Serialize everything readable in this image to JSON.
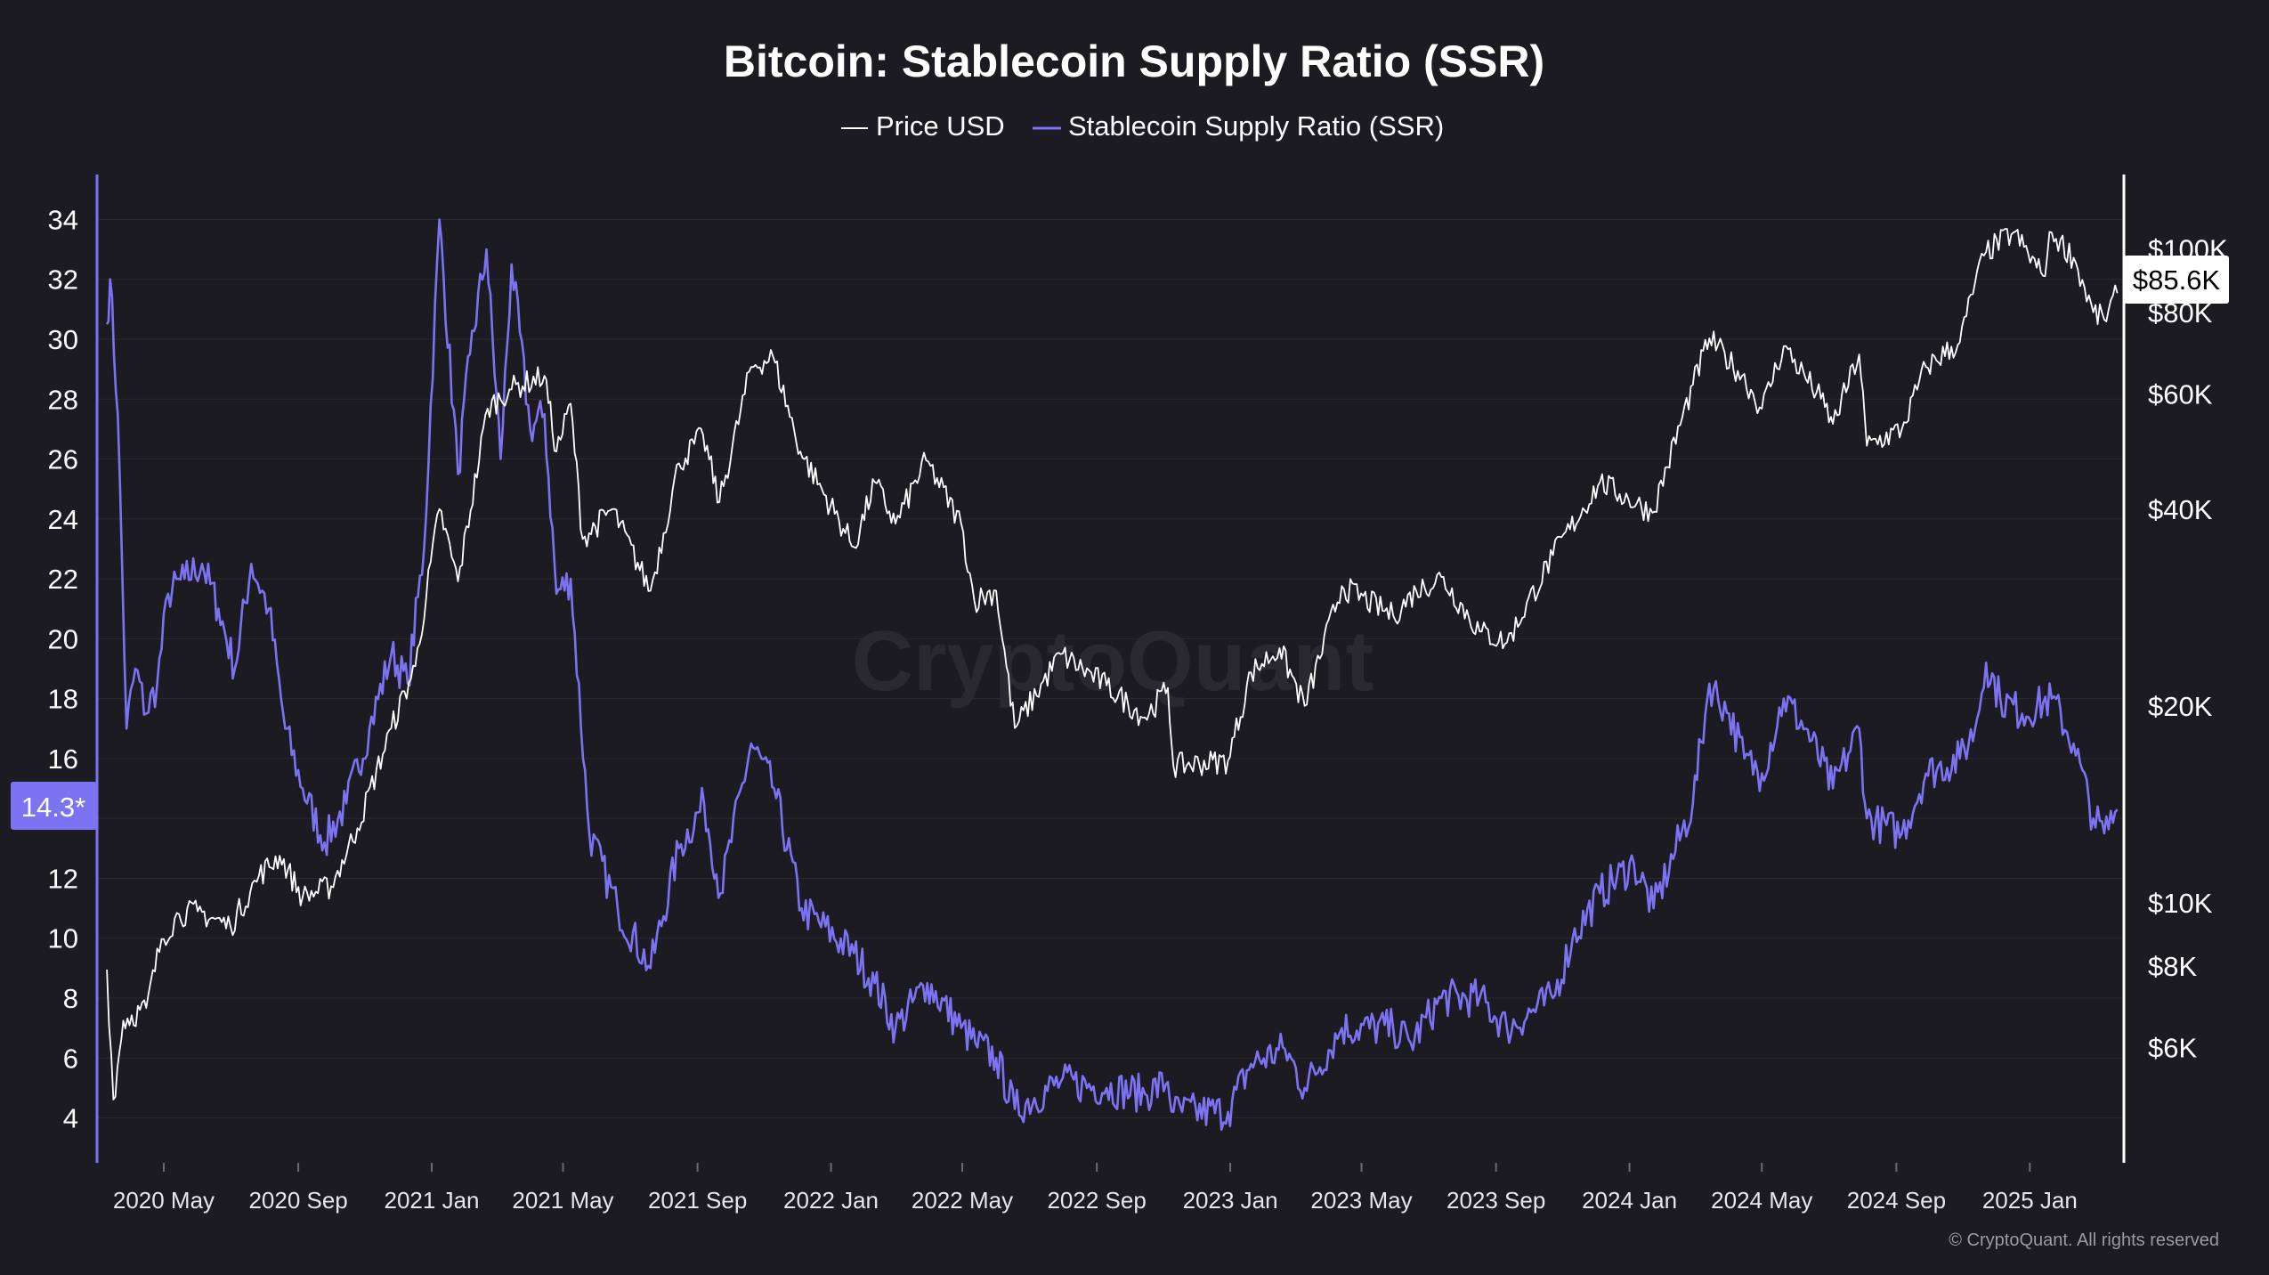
{
  "chart_data": {
    "type": "line",
    "title": "Bitcoin: Stablecoin Supply Ratio (SSR)",
    "legend_placement": "top-center",
    "grid": true,
    "colors": {
      "background": "#1c1b21",
      "price": "#ffffff",
      "ssr": "#7b73f2",
      "grid": "#2b2a31",
      "axis_left": "#7b73f2",
      "axis_right": "#ffffff"
    },
    "x_ticks": [
      "2020 May",
      "2020 Sep",
      "2021 Jan",
      "2021 May",
      "2021 Sep",
      "2022 Jan",
      "2022 May",
      "2022 Sep",
      "2023 Jan",
      "2023 May",
      "2023 Sep",
      "2024 Jan",
      "2024 May",
      "2024 Sep",
      "2025 Jan"
    ],
    "left_ticks": [
      "34",
      "32",
      "30",
      "28",
      "26",
      "24",
      "22",
      "20",
      "18",
      "16",
      "14",
      "12",
      "10",
      "8",
      "6",
      "4"
    ],
    "right_ticks": [
      "$100K",
      "$80K",
      "$60K",
      "$40K",
      "$20K",
      "$10K",
      "$8K",
      "$6K"
    ],
    "right_axis_scale": "log",
    "ylim_left": [
      2.5,
      35.5
    ],
    "ylim_right_usd": [
      4000,
      130000
    ],
    "current_ssr_label": "14.3*",
    "current_price_label": "$85.6K",
    "watermark": "CryptoQuant",
    "copyright": "© CryptoQuant. All rights reserved",
    "series": [
      {
        "name": "Price USD",
        "axis": "right",
        "points": [
          [
            "2020-03-10",
            7900
          ],
          [
            "2020-03-16",
            5000
          ],
          [
            "2020-03-25",
            6600
          ],
          [
            "2020-04-15",
            6900
          ],
          [
            "2020-04-29",
            8800
          ],
          [
            "2020-05-15",
            9600
          ],
          [
            "2020-06-01",
            9700
          ],
          [
            "2020-07-01",
            9200
          ],
          [
            "2020-07-27",
            11000
          ],
          [
            "2020-08-15",
            11800
          ],
          [
            "2020-09-05",
            10200
          ],
          [
            "2020-10-01",
            10600
          ],
          [
            "2020-10-25",
            13000
          ],
          [
            "2020-11-25",
            18500
          ],
          [
            "2020-12-17",
            23000
          ],
          [
            "2021-01-08",
            40000
          ],
          [
            "2021-01-25",
            31000
          ],
          [
            "2021-02-21",
            57000
          ],
          [
            "2021-03-13",
            61000
          ],
          [
            "2021-04-14",
            64000
          ],
          [
            "2021-04-25",
            49000
          ],
          [
            "2021-05-08",
            58000
          ],
          [
            "2021-05-19",
            36000
          ],
          [
            "2021-06-15",
            40000
          ],
          [
            "2021-07-20",
            30000
          ],
          [
            "2021-08-15",
            47000
          ],
          [
            "2021-09-06",
            52000
          ],
          [
            "2021-09-21",
            41000
          ],
          [
            "2021-10-20",
            66000
          ],
          [
            "2021-11-09",
            68500
          ],
          [
            "2021-12-04",
            49000
          ],
          [
            "2022-01-22",
            35000
          ],
          [
            "2022-02-10",
            44000
          ],
          [
            "2022-03-01",
            38000
          ],
          [
            "2022-03-29",
            47500
          ],
          [
            "2022-04-30",
            38000
          ],
          [
            "2022-05-12",
            29000
          ],
          [
            "2022-06-01",
            30000
          ],
          [
            "2022-06-18",
            18500
          ],
          [
            "2022-07-30",
            24000
          ],
          [
            "2022-09-10",
            21500
          ],
          [
            "2022-10-15",
            19200
          ],
          [
            "2022-11-05",
            21300
          ],
          [
            "2022-11-10",
            16200
          ],
          [
            "2022-12-30",
            16500
          ],
          [
            "2023-01-20",
            22500
          ],
          [
            "2023-02-15",
            24500
          ],
          [
            "2023-03-10",
            20000
          ],
          [
            "2023-04-13",
            30500
          ],
          [
            "2023-05-30",
            27500
          ],
          [
            "2023-06-20",
            30000
          ],
          [
            "2023-07-13",
            31500
          ],
          [
            "2023-08-17",
            26000
          ],
          [
            "2023-09-11",
            25000
          ],
          [
            "2023-10-23",
            34000
          ],
          [
            "2023-12-05",
            44000
          ],
          [
            "2024-01-22",
            39500
          ],
          [
            "2024-02-28",
            62000
          ],
          [
            "2024-03-14",
            73000
          ],
          [
            "2024-04-13",
            64000
          ],
          [
            "2024-05-01",
            57000
          ],
          [
            "2024-05-21",
            71000
          ],
          [
            "2024-06-24",
            59000
          ],
          [
            "2024-07-05",
            54000
          ],
          [
            "2024-07-29",
            69000
          ],
          [
            "2024-08-05",
            50000
          ],
          [
            "2024-09-06",
            53000
          ],
          [
            "2024-09-28",
            66000
          ],
          [
            "2024-10-29",
            72000
          ],
          [
            "2024-11-12",
            89000
          ],
          [
            "2024-11-22",
            99000
          ],
          [
            "2024-12-17",
            106000
          ],
          [
            "2025-01-13",
            91000
          ],
          [
            "2025-01-21",
            106000
          ],
          [
            "2025-02-10",
            97000
          ],
          [
            "2025-02-28",
            80000
          ],
          [
            "2025-03-10",
            78000
          ],
          [
            "2025-03-22",
            85600
          ]
        ]
      },
      {
        "name": "Stablecoin Supply Ratio (SSR)",
        "axis": "left",
        "points": [
          [
            "2020-03-10",
            30.5
          ],
          [
            "2020-03-13",
            32.0
          ],
          [
            "2020-03-20",
            27.5
          ],
          [
            "2020-03-28",
            17.0
          ],
          [
            "2020-04-05",
            19.0
          ],
          [
            "2020-04-15",
            17.5
          ],
          [
            "2020-04-25",
            18.5
          ],
          [
            "2020-05-05",
            21.5
          ],
          [
            "2020-05-20",
            22.0
          ],
          [
            "2020-06-05",
            22.5
          ],
          [
            "2020-06-20",
            21.0
          ],
          [
            "2020-07-05",
            19.0
          ],
          [
            "2020-07-20",
            22.5
          ],
          [
            "2020-08-05",
            21.0
          ],
          [
            "2020-08-20",
            17.0
          ],
          [
            "2020-09-05",
            15.0
          ],
          [
            "2020-09-25",
            13.2
          ],
          [
            "2020-10-15",
            14.5
          ],
          [
            "2020-11-05",
            17.0
          ],
          [
            "2020-11-25",
            19.5
          ],
          [
            "2020-12-10",
            18.5
          ],
          [
            "2020-12-25",
            23.0
          ],
          [
            "2021-01-08",
            34.0
          ],
          [
            "2021-01-25",
            25.5
          ],
          [
            "2021-02-05",
            29.5
          ],
          [
            "2021-02-20",
            33.0
          ],
          [
            "2021-03-05",
            26.0
          ],
          [
            "2021-03-15",
            32.5
          ],
          [
            "2021-04-01",
            27.0
          ],
          [
            "2021-04-14",
            27.5
          ],
          [
            "2021-04-25",
            21.5
          ],
          [
            "2021-05-08",
            22.0
          ],
          [
            "2021-05-25",
            13.5
          ],
          [
            "2021-06-20",
            11.0
          ],
          [
            "2021-07-20",
            9.0
          ],
          [
            "2021-08-15",
            13.0
          ],
          [
            "2021-09-07",
            14.5
          ],
          [
            "2021-09-22",
            11.5
          ],
          [
            "2021-10-20",
            16.5
          ],
          [
            "2021-11-10",
            15.0
          ],
          [
            "2021-12-05",
            11.0
          ],
          [
            "2022-01-22",
            9.5
          ],
          [
            "2022-02-10",
            8.5
          ],
          [
            "2022-03-01",
            7.0
          ],
          [
            "2022-03-30",
            8.5
          ],
          [
            "2022-04-30",
            7.0
          ],
          [
            "2022-05-13",
            6.5
          ],
          [
            "2022-06-01",
            6.0
          ],
          [
            "2022-06-18",
            4.3
          ],
          [
            "2022-07-30",
            5.2
          ],
          [
            "2022-09-10",
            5.0
          ],
          [
            "2022-10-15",
            4.8
          ],
          [
            "2022-11-05",
            5.2
          ],
          [
            "2022-11-10",
            4.2
          ],
          [
            "2022-12-30",
            4.2
          ],
          [
            "2023-01-20",
            5.8
          ],
          [
            "2023-02-20",
            6.3
          ],
          [
            "2023-03-10",
            5.0
          ],
          [
            "2023-04-13",
            7.0
          ],
          [
            "2023-05-30",
            7.0
          ],
          [
            "2023-06-15",
            6.5
          ],
          [
            "2023-07-13",
            8.0
          ],
          [
            "2023-08-17",
            8.0
          ],
          [
            "2023-09-11",
            7.0
          ],
          [
            "2023-10-23",
            8.0
          ],
          [
            "2023-11-10",
            10.0
          ],
          [
            "2023-12-05",
            11.5
          ],
          [
            "2024-01-05",
            12.5
          ],
          [
            "2024-01-23",
            11.0
          ],
          [
            "2024-02-28",
            14.5
          ],
          [
            "2024-03-14",
            18.5
          ],
          [
            "2024-04-01",
            17.5
          ],
          [
            "2024-04-15",
            16.0
          ],
          [
            "2024-05-01",
            15.5
          ],
          [
            "2024-05-21",
            18.0
          ],
          [
            "2024-06-10",
            17.0
          ],
          [
            "2024-07-05",
            15.0
          ],
          [
            "2024-07-29",
            17.0
          ],
          [
            "2024-08-05",
            14.0
          ],
          [
            "2024-09-06",
            13.5
          ],
          [
            "2024-09-28",
            15.5
          ],
          [
            "2024-10-29",
            16.0
          ],
          [
            "2024-11-12",
            17.0
          ],
          [
            "2024-11-22",
            19.2
          ],
          [
            "2024-12-05",
            18.0
          ],
          [
            "2024-12-25",
            17.5
          ],
          [
            "2025-01-21",
            18.0
          ],
          [
            "2025-02-10",
            16.5
          ],
          [
            "2025-02-28",
            14.0
          ],
          [
            "2025-03-10",
            13.5
          ],
          [
            "2025-03-22",
            14.3
          ]
        ]
      }
    ]
  }
}
